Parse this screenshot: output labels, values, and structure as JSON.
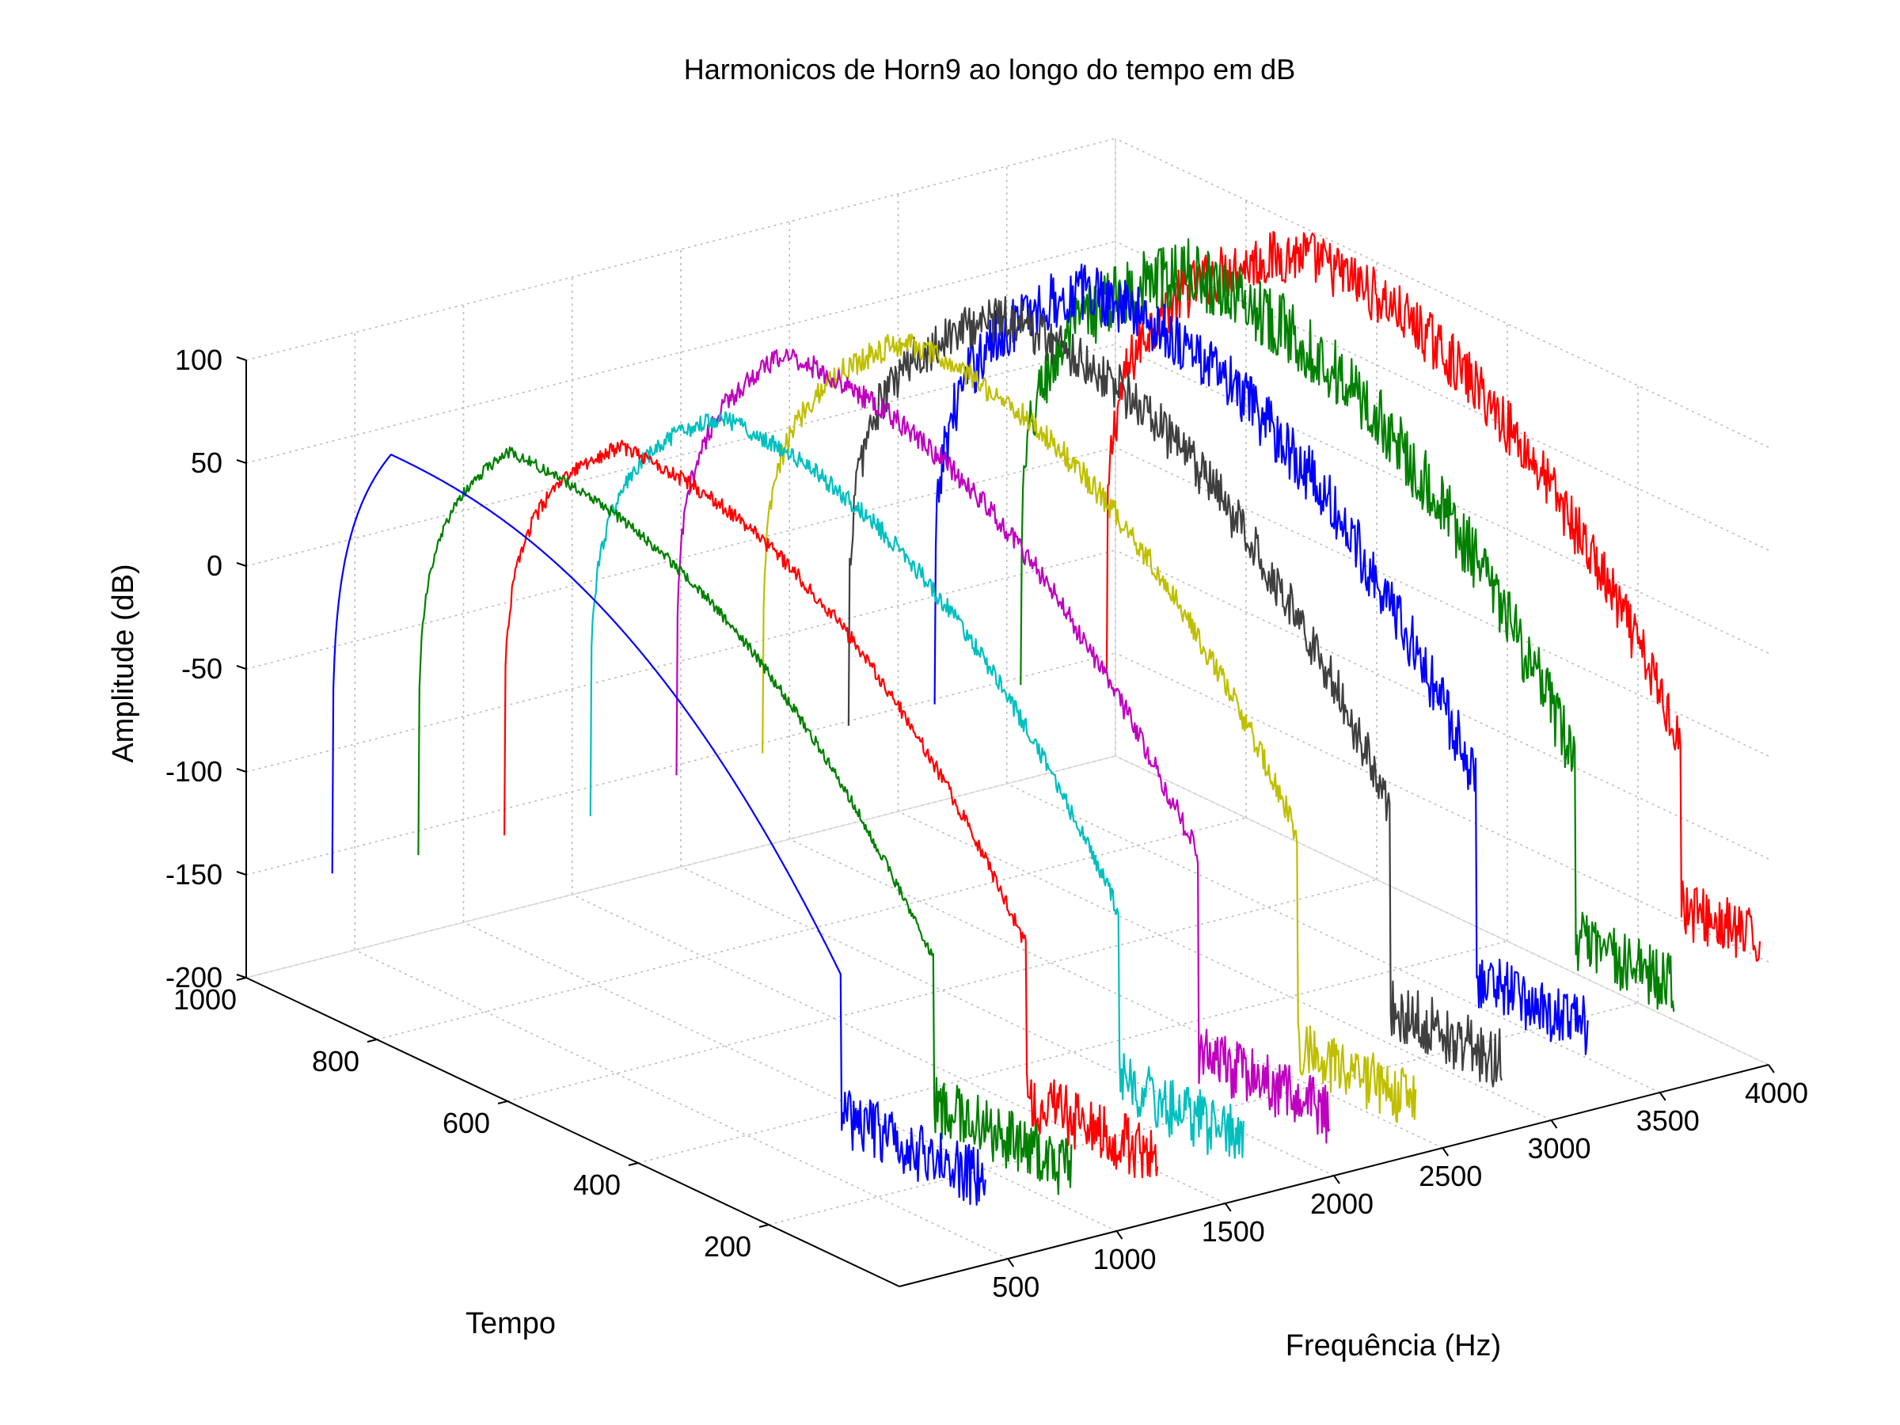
{
  "chart_data": {
    "type": "line",
    "title": "Harmonicos de Horn9 ao longo do tempo em dB",
    "xlabel": "Frequência (Hz)",
    "ylabel": "Tempo",
    "zlabel": "Amplitude (dB)",
    "xlim": [
      0,
      4000
    ],
    "ylim": [
      0,
      1000
    ],
    "zlim": [
      -200,
      100
    ],
    "xticks": [
      "500",
      "1000",
      "1500",
      "2000",
      "2500",
      "3000",
      "3500",
      "4000"
    ],
    "yticks": [
      "200",
      "400",
      "600",
      "800",
      "1000"
    ],
    "zticks": [
      "100",
      "50",
      "0",
      "-50",
      "-100",
      "-150",
      "-200"
    ],
    "grid": true,
    "series": [
      {
        "frequency": 396,
        "color": "#0000ff",
        "peak_db": 57,
        "peak_time": 910,
        "knee_time": 220,
        "tail_db": -160,
        "noise": 0.0
      },
      {
        "frequency": 792,
        "color": "#008000",
        "peak_db": 55,
        "peak_time": 860,
        "knee_time": 210,
        "tail_db": -165,
        "noise": 0.3
      },
      {
        "frequency": 1188,
        "color": "#ff0000",
        "peak_db": 53,
        "peak_time": 820,
        "knee_time": 200,
        "tail_db": -170,
        "noise": 0.4
      },
      {
        "frequency": 1584,
        "color": "#00bfbf",
        "peak_db": 60,
        "peak_time": 800,
        "knee_time": 190,
        "tail_db": -172,
        "noise": 0.5
      },
      {
        "frequency": 1980,
        "color": "#bf00bf",
        "peak_db": 75,
        "peak_time": 830,
        "knee_time": 200,
        "tail_db": -170,
        "noise": 0.6
      },
      {
        "frequency": 2376,
        "color": "#bfbf00",
        "peak_db": 78,
        "peak_time": 780,
        "knee_time": 180,
        "tail_db": -175,
        "noise": 0.7
      },
      {
        "frequency": 2772,
        "color": "#3f3f3f",
        "peak_db": 83,
        "peak_time": 760,
        "knee_time": 170,
        "tail_db": -165,
        "noise": 1.3
      },
      {
        "frequency": 3168,
        "color": "#0000ff",
        "peak_db": 85,
        "peak_time": 760,
        "knee_time": 170,
        "tail_db": -160,
        "noise": 1.6
      },
      {
        "frequency": 3564,
        "color": "#008000",
        "peak_db": 86,
        "peak_time": 740,
        "knee_time": 150,
        "tail_db": -150,
        "noise": 1.8
      },
      {
        "frequency": 3960,
        "color": "#ff0000",
        "peak_db": 90,
        "peak_time": 700,
        "knee_time": 120,
        "tail_db": -140,
        "noise": 1.5
      }
    ]
  }
}
